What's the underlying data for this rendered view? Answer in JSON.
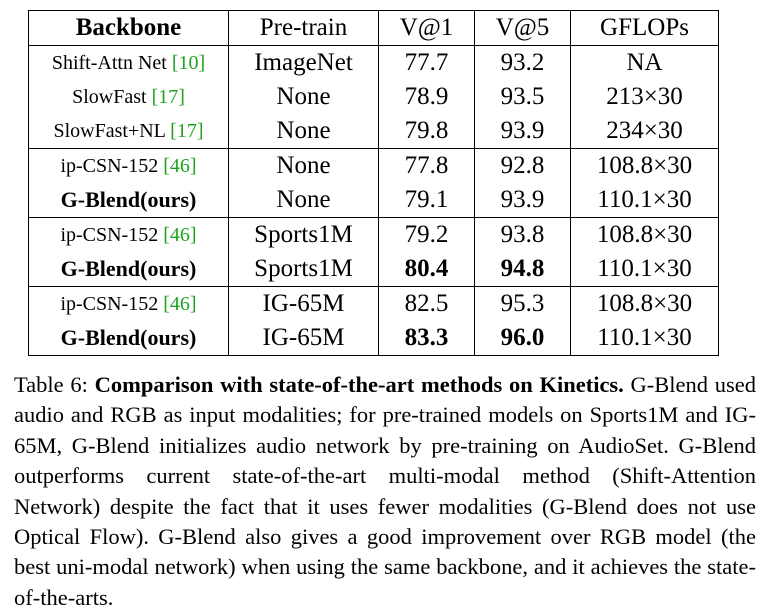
{
  "table": {
    "headers": [
      "Backbone",
      "Pre-train",
      "V@1",
      "V@5",
      "GFLOPs"
    ],
    "rows": [
      {
        "model": "Shift-Attn Net ",
        "cite": "[10]",
        "model_bold": false,
        "pretrain": "ImageNet",
        "v1": "77.7",
        "v1_bold": false,
        "v5": "93.2",
        "v5_bold": false,
        "gflops": "NA"
      },
      {
        "model": "SlowFast ",
        "cite": "[17]",
        "model_bold": false,
        "pretrain": "None",
        "v1": "78.9",
        "v1_bold": false,
        "v5": "93.5",
        "v5_bold": false,
        "gflops": "213×30"
      },
      {
        "model": "SlowFast+NL ",
        "cite": "[17]",
        "model_bold": false,
        "pretrain": "None",
        "v1": "79.8",
        "v1_bold": false,
        "v5": "93.9",
        "v5_bold": false,
        "gflops": "234×30"
      },
      {
        "model": "ip-CSN-152 ",
        "cite": "[46]",
        "model_bold": false,
        "pretrain": "None",
        "v1": "77.8",
        "v1_bold": false,
        "v5": "92.8",
        "v5_bold": false,
        "gflops": "108.8×30"
      },
      {
        "model": "G-Blend(ours)",
        "cite": "",
        "model_bold": true,
        "pretrain": "None",
        "v1": "79.1",
        "v1_bold": false,
        "v5": "93.9",
        "v5_bold": false,
        "gflops": "110.1×30"
      },
      {
        "model": "ip-CSN-152 ",
        "cite": "[46]",
        "model_bold": false,
        "pretrain": "Sports1M",
        "v1": "79.2",
        "v1_bold": false,
        "v5": "93.8",
        "v5_bold": false,
        "gflops": "108.8×30"
      },
      {
        "model": "G-Blend(ours)",
        "cite": "",
        "model_bold": true,
        "pretrain": "Sports1M",
        "v1": "80.4",
        "v1_bold": true,
        "v5": "94.8",
        "v5_bold": true,
        "gflops": "110.1×30"
      },
      {
        "model": "ip-CSN-152 ",
        "cite": "[46]",
        "model_bold": false,
        "pretrain": "IG-65M",
        "v1": "82.5",
        "v1_bold": false,
        "v5": "95.3",
        "v5_bold": false,
        "gflops": "108.8×30"
      },
      {
        "model": "G-Blend(ours)",
        "cite": "",
        "model_bold": true,
        "pretrain": "IG-65M",
        "v1": "83.3",
        "v1_bold": true,
        "v5": "96.0",
        "v5_bold": true,
        "gflops": "110.1×30"
      }
    ]
  },
  "caption": {
    "label": "Table 6: ",
    "title": "Comparison with state-of-the-art methods on Kinetics.",
    "body": " G-Blend used audio and RGB as input modalities; for pre-trained models on Sports1M and IG-65M, G-Blend initializes audio network by pre-training on AudioSet. G-Blend outperforms current state-of-the-art multi-modal method (Shift-Attention Network) despite the fact that it uses fewer modal­ities (G-Blend does not use Optical Flow). G-Blend also gives a good im­provement over RGB model (the best uni-modal network) when using the same backbone, and it achieves the state-of-the-arts."
  },
  "colors": {
    "citation": "#1fa31f"
  }
}
